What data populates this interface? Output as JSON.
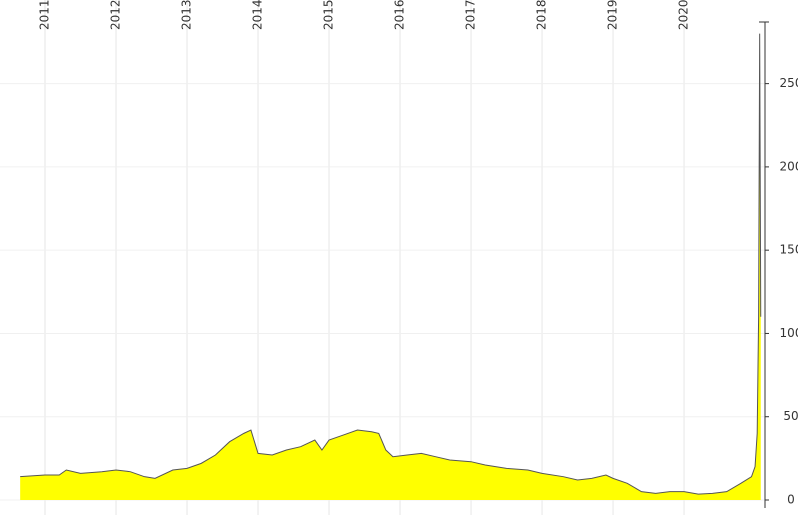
{
  "chart_data": {
    "type": "area",
    "x": [
      2010.65,
      2011.0,
      2011.2,
      2011.3,
      2011.5,
      2011.8,
      2012.0,
      2012.2,
      2012.4,
      2012.55,
      2012.8,
      2013.0,
      2013.2,
      2013.4,
      2013.6,
      2013.8,
      2013.9,
      2014.0,
      2014.2,
      2014.4,
      2014.6,
      2014.8,
      2014.9,
      2015.0,
      2015.2,
      2015.4,
      2015.6,
      2015.7,
      2015.8,
      2015.9,
      2016.1,
      2016.3,
      2016.5,
      2016.7,
      2017.0,
      2017.2,
      2017.5,
      2017.8,
      2018.0,
      2018.3,
      2018.5,
      2018.7,
      2018.9,
      2019.0,
      2019.2,
      2019.4,
      2019.6,
      2019.8,
      2020.0,
      2020.2,
      2020.4,
      2020.6,
      2020.8,
      2020.95,
      2021.0,
      2021.03,
      2021.05,
      2021.065,
      2021.08
    ],
    "values": [
      14,
      15,
      15,
      18,
      16,
      17,
      18,
      17,
      14,
      13,
      18,
      19,
      22,
      27,
      35,
      40,
      42,
      28,
      27,
      30,
      32,
      36,
      30,
      36,
      39,
      42,
      41,
      40,
      30,
      26,
      27,
      28,
      26,
      24,
      23,
      21,
      19,
      18,
      16,
      14,
      12,
      13,
      15,
      13,
      10,
      5,
      4,
      5,
      5,
      3.5,
      4,
      5,
      10,
      14,
      20,
      40,
      110,
      280,
      110
    ],
    "color": "#ffff00",
    "line_color": "#555555",
    "xlim": [
      2010.366,
      2021.14
    ],
    "ylim": [
      0,
      287
    ],
    "xticks": [
      2011,
      2012,
      2013,
      2014,
      2015,
      2016,
      2017,
      2018,
      2019,
      2020
    ],
    "yticks": [
      0,
      50,
      100,
      150,
      200,
      250
    ],
    "grid": true
  }
}
